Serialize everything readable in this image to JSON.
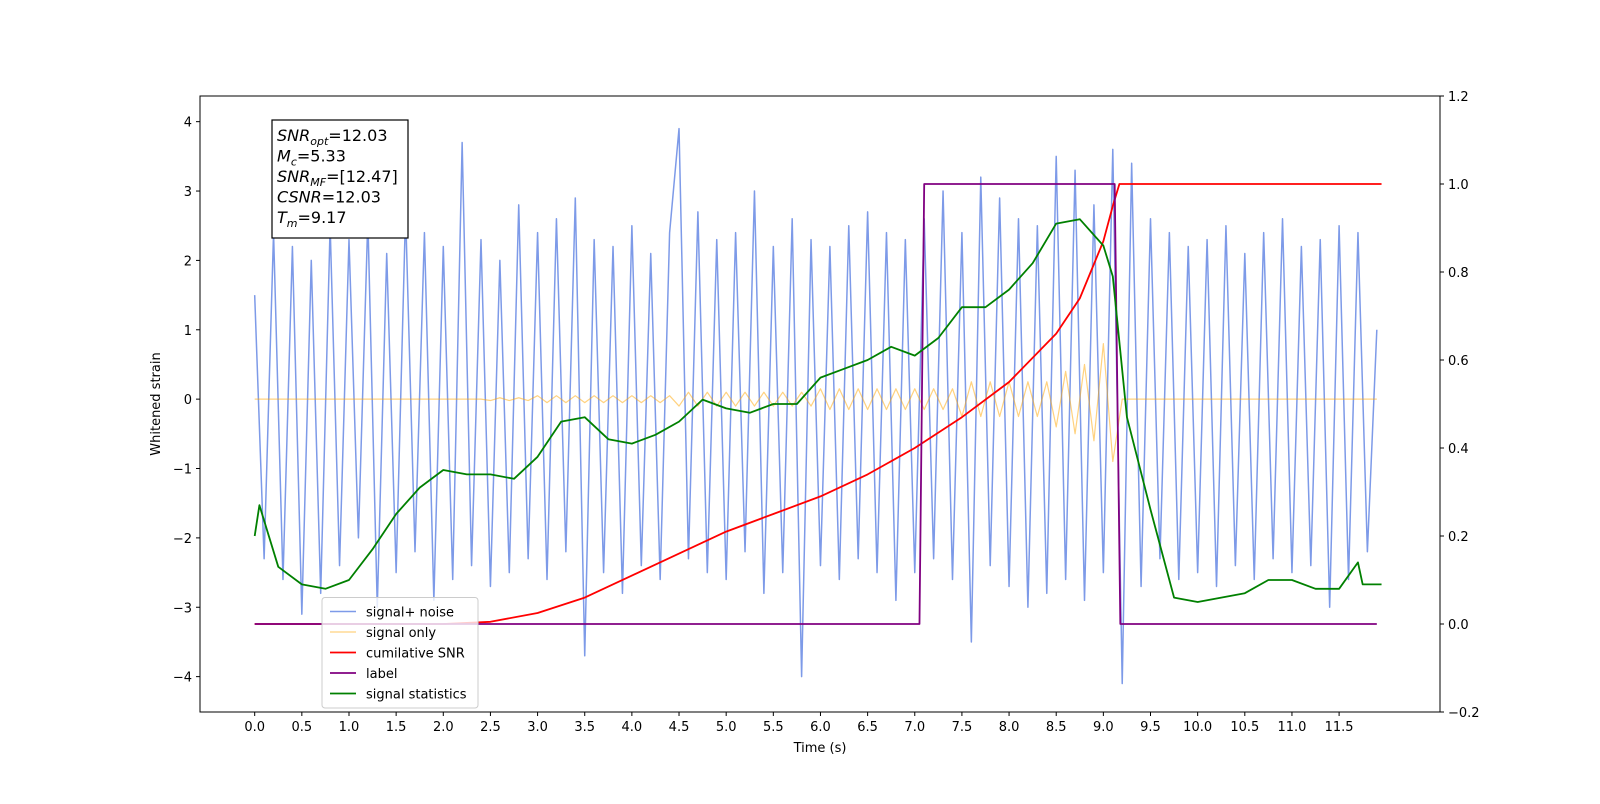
{
  "chart_data": {
    "type": "line",
    "xlabel": "Time (s)",
    "ylabel": "Whitened strain",
    "xlim": [
      -0.58,
      12.57
    ],
    "ylim": [
      -4.51,
      4.37
    ],
    "y2lim": [
      -0.2,
      1.2
    ],
    "xticks": [
      {
        "value": 0,
        "label": "0.0"
      },
      0.5,
      {
        "value": 1,
        "label": "1.0"
      },
      1.5,
      {
        "value": 2,
        "label": "2.0"
      },
      2.5,
      {
        "value": 3,
        "label": "3.0"
      },
      3.5,
      {
        "value": 4,
        "label": "4.0"
      },
      4.5,
      {
        "value": 5,
        "label": "5.0"
      },
      5.5,
      {
        "value": 6,
        "label": "6.0"
      },
      6.5,
      {
        "value": 7,
        "label": "7.0"
      },
      7.5,
      {
        "value": 8,
        "label": "8.0"
      },
      8.5,
      {
        "value": 9,
        "label": "9.0"
      },
      9.5,
      {
        "value": 10,
        "label": "10.0"
      },
      10.5,
      {
        "value": 11,
        "label": "11.0"
      },
      11.5
    ],
    "yticks": [
      {
        "value": -4,
        "label": "−4"
      },
      {
        "value": -3,
        "label": "−3"
      },
      {
        "value": -2,
        "label": "−2"
      },
      {
        "value": -1,
        "label": "−1"
      },
      0,
      1,
      2,
      3,
      4
    ],
    "y2ticks": [
      {
        "value": -0.2,
        "label": "−0.2"
      },
      {
        "value": 0,
        "label": "0.0"
      },
      0.2,
      0.4,
      0.6,
      0.8,
      {
        "value": 1,
        "label": "1.0"
      },
      1.2
    ],
    "legend_loc": "lower left",
    "annotations": [
      {
        "main": "SNR",
        "sub": "opt",
        "rest": "=12.03"
      },
      {
        "main": "M",
        "sub": "c",
        "rest": "=5.33"
      },
      {
        "main": "SNR",
        "sub": "MF",
        "rest": "=[12.47]"
      },
      {
        "main": "CSNR",
        "sub": "",
        "rest": "=12.03"
      },
      {
        "main": "T",
        "sub": "m",
        "rest": "=9.17"
      }
    ],
    "series": [
      {
        "name": "signal+ noise",
        "color": "#6f8fe6",
        "x": [
          0.0,
          0.1,
          0.2,
          0.3,
          0.4,
          0.5,
          0.6,
          0.7,
          0.8,
          0.9,
          1.0,
          1.1,
          1.2,
          1.3,
          1.4,
          1.5,
          1.6,
          1.7,
          1.8,
          1.9,
          2.0,
          2.1,
          2.2,
          2.3,
          2.4,
          2.5,
          2.6,
          2.7,
          2.8,
          2.9,
          3.0,
          3.1,
          3.2,
          3.3,
          3.4,
          3.5,
          3.6,
          3.7,
          3.8,
          3.9,
          4.0,
          4.1,
          4.2,
          4.3,
          4.4,
          4.5,
          4.6,
          4.7,
          4.8,
          4.9,
          5.0,
          5.1,
          5.2,
          5.3,
          5.4,
          5.5,
          5.6,
          5.7,
          5.8,
          5.9,
          6.0,
          6.1,
          6.2,
          6.3,
          6.4,
          6.5,
          6.6,
          6.7,
          6.8,
          6.9,
          7.0,
          7.1,
          7.2,
          7.3,
          7.4,
          7.5,
          7.6,
          7.7,
          7.8,
          7.9,
          8.0,
          8.1,
          8.2,
          8.3,
          8.4,
          8.5,
          8.6,
          8.7,
          8.8,
          8.9,
          9.0,
          9.1,
          9.2,
          9.3,
          9.4,
          9.5,
          9.6,
          9.7,
          9.8,
          9.9,
          10.0,
          10.1,
          10.2,
          10.3,
          10.4,
          10.5,
          10.6,
          10.7,
          10.8,
          10.9,
          11.0,
          11.1,
          11.2,
          11.3,
          11.4,
          11.5,
          11.6,
          11.7,
          11.8,
          11.9
        ],
        "values": [
          1.5,
          -2.3,
          2.4,
          -2.6,
          2.2,
          -3.1,
          2.0,
          -2.8,
          2.5,
          -2.4,
          2.3,
          -2.0,
          2.6,
          -3.0,
          2.1,
          -2.5,
          2.7,
          -2.2,
          2.4,
          -2.9,
          2.2,
          -2.6,
          3.7,
          -2.4,
          2.3,
          -2.7,
          2.0,
          -2.5,
          2.8,
          -2.3,
          2.4,
          -2.6,
          2.6,
          -2.2,
          2.9,
          -3.7,
          2.3,
          -2.5,
          2.2,
          -2.8,
          2.5,
          -2.4,
          2.1,
          -2.6,
          2.4,
          3.9,
          -2.3,
          2.7,
          -2.5,
          2.3,
          -2.6,
          2.4,
          -2.2,
          3.0,
          -2.8,
          2.2,
          -2.5,
          2.6,
          -4.0,
          2.3,
          -2.4,
          2.2,
          -2.6,
          2.5,
          -2.3,
          2.7,
          -2.5,
          2.4,
          -2.9,
          2.3,
          -2.5,
          2.6,
          -2.3,
          3.0,
          -2.6,
          2.4,
          -3.5,
          3.2,
          -2.4,
          2.9,
          -2.7,
          2.6,
          -3.0,
          2.5,
          -2.8,
          3.5,
          -2.6,
          3.3,
          -2.9,
          2.8,
          -2.5,
          3.6,
          -4.1,
          3.4,
          -2.7,
          2.6,
          -2.3,
          2.4,
          -2.6,
          2.2,
          -2.5,
          2.3,
          -2.7,
          2.5,
          -2.4,
          2.1,
          -2.6,
          2.4,
          -2.3,
          2.6,
          -2.5,
          2.2,
          -2.4,
          2.3,
          -3.0,
          2.5,
          -2.6,
          2.4,
          -2.2,
          1.0
        ]
      },
      {
        "name": "signal only",
        "color": "#ffa500",
        "x": [
          0.0,
          0.1,
          0.2,
          0.3,
          0.4,
          0.5,
          0.6,
          0.7,
          0.8,
          0.9,
          1.0,
          1.1,
          1.2,
          1.3,
          1.4,
          1.5,
          1.6,
          1.7,
          1.8,
          1.9,
          2.0,
          2.1,
          2.2,
          2.3,
          2.4,
          2.5,
          2.6,
          2.7,
          2.8,
          2.9,
          3.0,
          3.1,
          3.2,
          3.3,
          3.4,
          3.5,
          3.6,
          3.7,
          3.8,
          3.9,
          4.0,
          4.1,
          4.2,
          4.3,
          4.4,
          4.5,
          4.6,
          4.7,
          4.8,
          4.9,
          5.0,
          5.1,
          5.2,
          5.3,
          5.4,
          5.5,
          5.6,
          5.7,
          5.8,
          5.9,
          6.0,
          6.1,
          6.2,
          6.3,
          6.4,
          6.5,
          6.6,
          6.7,
          6.8,
          6.9,
          7.0,
          7.1,
          7.2,
          7.3,
          7.4,
          7.5,
          7.6,
          7.7,
          7.8,
          7.9,
          8.0,
          8.1,
          8.2,
          8.3,
          8.4,
          8.5,
          8.6,
          8.7,
          8.8,
          8.9,
          9.0,
          9.1,
          9.2,
          9.3,
          9.4,
          9.5,
          9.6,
          9.7,
          9.8,
          9.9,
          10.0,
          10.1,
          10.2,
          10.3,
          10.4,
          10.5,
          10.6,
          10.7,
          10.8,
          10.9,
          11.0,
          11.1,
          11.2,
          11.3,
          11.4,
          11.5,
          11.6,
          11.7,
          11.8,
          11.9
        ],
        "values": [
          0,
          0,
          0,
          0,
          0,
          0,
          0,
          0,
          0,
          0,
          0,
          0,
          0,
          0,
          0,
          0,
          0,
          0,
          0,
          0,
          0,
          0,
          0,
          0,
          0,
          -0.02,
          0.02,
          -0.02,
          0.02,
          -0.02,
          0.05,
          -0.05,
          0.05,
          -0.05,
          0.05,
          -0.05,
          0.05,
          -0.05,
          0.05,
          -0.05,
          0.05,
          -0.05,
          0.05,
          -0.05,
          0.05,
          -0.1,
          0.1,
          -0.1,
          0.1,
          -0.1,
          0.1,
          -0.1,
          0.1,
          -0.1,
          0.1,
          -0.1,
          0.1,
          -0.1,
          0.1,
          -0.1,
          0.15,
          -0.15,
          0.15,
          -0.15,
          0.15,
          -0.15,
          0.15,
          -0.15,
          0.15,
          -0.15,
          0.15,
          -0.15,
          0.15,
          -0.15,
          0.15,
          -0.25,
          0.25,
          -0.25,
          0.25,
          -0.25,
          0.25,
          -0.25,
          0.25,
          -0.25,
          0.25,
          -0.4,
          0.4,
          -0.5,
          0.5,
          -0.6,
          0.8,
          -0.9,
          0,
          0,
          0,
          0,
          0,
          0,
          0,
          0,
          0,
          0,
          0,
          0,
          0,
          0,
          0,
          0,
          0,
          0,
          0,
          0,
          0,
          0,
          0,
          0,
          0,
          0,
          0,
          0
        ]
      },
      {
        "name": "cumilative SNR",
        "color": "#ff0000",
        "axis": "y2",
        "x": [
          0,
          2.0,
          2.5,
          3.0,
          3.5,
          4.0,
          4.5,
          5.0,
          5.5,
          6.0,
          6.5,
          7.0,
          7.5,
          8.0,
          8.5,
          8.75,
          9.0,
          9.1,
          9.17,
          11.95
        ],
        "values": [
          0,
          0,
          0.005,
          0.025,
          0.06,
          0.11,
          0.16,
          0.21,
          0.25,
          0.29,
          0.34,
          0.4,
          0.47,
          0.55,
          0.66,
          0.74,
          0.87,
          0.95,
          1.0,
          1.0
        ]
      },
      {
        "name": "label",
        "color": "#800080",
        "axis": "y2",
        "x": [
          0,
          7.05,
          7.1,
          9.12,
          9.18,
          11.9
        ],
        "values": [
          0,
          0,
          1,
          1,
          0,
          0
        ]
      },
      {
        "name": "signal statistics",
        "color": "#008000",
        "axis": "y2",
        "x": [
          0,
          0.05,
          0.25,
          0.5,
          0.75,
          1.0,
          1.25,
          1.5,
          1.75,
          2.0,
          2.25,
          2.5,
          2.75,
          3.0,
          3.25,
          3.5,
          3.75,
          4.0,
          4.25,
          4.5,
          4.75,
          5.0,
          5.25,
          5.5,
          5.75,
          6.0,
          6.25,
          6.5,
          6.75,
          7.0,
          7.25,
          7.5,
          7.75,
          8.0,
          8.25,
          8.5,
          8.75,
          9.0,
          9.1,
          9.25,
          9.5,
          9.75,
          10.0,
          10.25,
          10.5,
          10.75,
          11.0,
          11.25,
          11.5,
          11.7,
          11.75,
          11.95
        ],
        "values": [
          0.2,
          0.27,
          0.13,
          0.09,
          0.08,
          0.1,
          0.17,
          0.25,
          0.31,
          0.35,
          0.34,
          0.34,
          0.33,
          0.38,
          0.46,
          0.47,
          0.42,
          0.41,
          0.43,
          0.46,
          0.51,
          0.49,
          0.48,
          0.5,
          0.5,
          0.56,
          0.58,
          0.6,
          0.63,
          0.61,
          0.65,
          0.72,
          0.72,
          0.76,
          0.82,
          0.91,
          0.92,
          0.86,
          0.79,
          0.47,
          0.26,
          0.06,
          0.05,
          0.06,
          0.07,
          0.1,
          0.1,
          0.08,
          0.08,
          0.14,
          0.09,
          0.09
        ]
      }
    ]
  }
}
